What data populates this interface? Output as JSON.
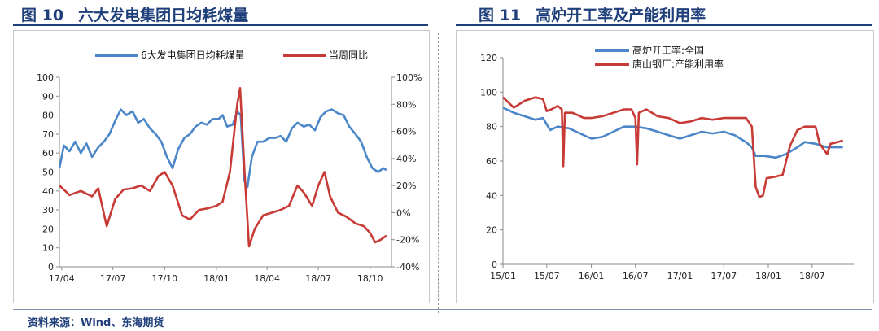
{
  "figures": {
    "fig10": {
      "number": "图 10",
      "title": "六大发电集团日均耗煤量"
    },
    "fig11": {
      "number": "图 11",
      "title": "高炉开工率及产能利用率"
    }
  },
  "source": "资料来源：Wind、东海期货",
  "chart_data": [
    {
      "type": "line",
      "legend_position": "top",
      "grid": false,
      "x_type": "date",
      "x_ticks": [
        "17/04",
        "17/07",
        "17/10",
        "18/01",
        "18/04",
        "18/07",
        "18/10"
      ],
      "y_left": {
        "range": [
          0,
          100
        ],
        "ticks": [
          "0",
          "10",
          "20",
          "30",
          "40",
          "50",
          "60",
          "70",
          "80",
          "90",
          "100"
        ]
      },
      "y_right": {
        "range": [
          -40,
          100
        ],
        "ticks": [
          "-40%",
          "-20%",
          "0%",
          "20%",
          "40%",
          "60%",
          "80%",
          "100%"
        ]
      },
      "series": [
        {
          "name": "6大发电集团日均耗煤量",
          "axis": "left",
          "color": "#4a86c8",
          "points": [
            [
              "2017-03-28",
              52
            ],
            [
              "2017-04-05",
              64
            ],
            [
              "2017-04-15",
              61
            ],
            [
              "2017-04-25",
              66
            ],
            [
              "2017-05-05",
              60
            ],
            [
              "2017-05-15",
              65
            ],
            [
              "2017-05-25",
              58
            ],
            [
              "2017-06-05",
              63
            ],
            [
              "2017-06-15",
              66
            ],
            [
              "2017-06-25",
              70
            ],
            [
              "2017-07-05",
              77
            ],
            [
              "2017-07-15",
              83
            ],
            [
              "2017-07-25",
              80
            ],
            [
              "2017-08-05",
              82
            ],
            [
              "2017-08-15",
              76
            ],
            [
              "2017-08-25",
              78
            ],
            [
              "2017-09-05",
              73
            ],
            [
              "2017-09-15",
              70
            ],
            [
              "2017-09-25",
              66
            ],
            [
              "2017-10-05",
              58
            ],
            [
              "2017-10-15",
              52
            ],
            [
              "2017-10-25",
              62
            ],
            [
              "2017-11-05",
              68
            ],
            [
              "2017-11-15",
              70
            ],
            [
              "2017-11-25",
              74
            ],
            [
              "2017-12-05",
              76
            ],
            [
              "2017-12-15",
              75
            ],
            [
              "2017-12-25",
              78
            ],
            [
              "2018-01-05",
              78
            ],
            [
              "2018-01-12",
              80
            ],
            [
              "2018-01-20",
              74
            ],
            [
              "2018-01-30",
              75
            ],
            [
              "2018-02-07",
              82
            ],
            [
              "2018-02-13",
              80
            ],
            [
              "2018-02-20",
              45
            ],
            [
              "2018-02-25",
              42
            ],
            [
              "2018-03-05",
              58
            ],
            [
              "2018-03-15",
              66
            ],
            [
              "2018-03-25",
              66
            ],
            [
              "2018-04-05",
              68
            ],
            [
              "2018-04-15",
              68
            ],
            [
              "2018-04-25",
              69
            ],
            [
              "2018-05-05",
              66
            ],
            [
              "2018-05-15",
              73
            ],
            [
              "2018-05-25",
              76
            ],
            [
              "2018-06-05",
              74
            ],
            [
              "2018-06-15",
              75
            ],
            [
              "2018-06-25",
              72
            ],
            [
              "2018-07-05",
              79
            ],
            [
              "2018-07-15",
              82
            ],
            [
              "2018-07-25",
              83
            ],
            [
              "2018-08-05",
              81
            ],
            [
              "2018-08-15",
              80
            ],
            [
              "2018-08-25",
              74
            ],
            [
              "2018-09-05",
              70
            ],
            [
              "2018-09-15",
              66
            ],
            [
              "2018-09-25",
              58
            ],
            [
              "2018-10-05",
              52
            ],
            [
              "2018-10-15",
              50
            ],
            [
              "2018-10-25",
              52
            ],
            [
              "2018-10-30",
              51
            ]
          ]
        },
        {
          "name": "当周同比",
          "axis": "right",
          "color": "#c83a35",
          "points": [
            [
              "2017-03-28",
              20
            ],
            [
              "2017-04-15",
              13
            ],
            [
              "2017-05-05",
              16
            ],
            [
              "2017-05-25",
              12
            ],
            [
              "2017-06-05",
              18
            ],
            [
              "2017-06-20",
              -10
            ],
            [
              "2017-07-05",
              10
            ],
            [
              "2017-07-20",
              17
            ],
            [
              "2017-08-05",
              18
            ],
            [
              "2017-08-20",
              20
            ],
            [
              "2017-09-05",
              16
            ],
            [
              "2017-09-20",
              27
            ],
            [
              "2017-10-01",
              30
            ],
            [
              "2017-10-15",
              20
            ],
            [
              "2017-11-01",
              -2
            ],
            [
              "2017-11-15",
              -5
            ],
            [
              "2017-12-01",
              2
            ],
            [
              "2017-12-15",
              3
            ],
            [
              "2018-01-01",
              5
            ],
            [
              "2018-01-12",
              8
            ],
            [
              "2018-01-25",
              30
            ],
            [
              "2018-02-07",
              80
            ],
            [
              "2018-02-12",
              92
            ],
            [
              "2018-02-20",
              30
            ],
            [
              "2018-02-28",
              -25
            ],
            [
              "2018-03-10",
              -12
            ],
            [
              "2018-03-25",
              -2
            ],
            [
              "2018-04-10",
              0
            ],
            [
              "2018-04-25",
              2
            ],
            [
              "2018-05-10",
              5
            ],
            [
              "2018-05-25",
              20
            ],
            [
              "2018-06-05",
              15
            ],
            [
              "2018-06-20",
              5
            ],
            [
              "2018-07-01",
              20
            ],
            [
              "2018-07-12",
              30
            ],
            [
              "2018-07-22",
              12
            ],
            [
              "2018-08-05",
              0
            ],
            [
              "2018-08-20",
              -3
            ],
            [
              "2018-09-05",
              -8
            ],
            [
              "2018-09-20",
              -10
            ],
            [
              "2018-10-01",
              -15
            ],
            [
              "2018-10-10",
              -22
            ],
            [
              "2018-10-20",
              -20
            ],
            [
              "2018-10-30",
              -17
            ]
          ]
        }
      ]
    },
    {
      "type": "line",
      "legend_position": "top-left",
      "grid": false,
      "x_type": "date",
      "x_ticks": [
        "15/01",
        "15/07",
        "16/01",
        "16/07",
        "17/01",
        "17/07",
        "18/01",
        "18/07"
      ],
      "y_left": {
        "range": [
          0,
          120
        ],
        "ticks": [
          "0",
          "20",
          "40",
          "60",
          "80",
          "100",
          "120"
        ]
      },
      "series": [
        {
          "name": "高炉开工率:全国",
          "axis": "left",
          "color": "#4a86c8",
          "points": [
            [
              "2015-01-01",
              91
            ],
            [
              "2015-02-15",
              88
            ],
            [
              "2015-04-01",
              86
            ],
            [
              "2015-05-15",
              84
            ],
            [
              "2015-06-15",
              85
            ],
            [
              "2015-07-15",
              78
            ],
            [
              "2015-08-15",
              80
            ],
            [
              "2015-10-01",
              79
            ],
            [
              "2015-11-15",
              76
            ],
            [
              "2016-01-01",
              73
            ],
            [
              "2016-02-15",
              74
            ],
            [
              "2016-04-01",
              77
            ],
            [
              "2016-05-15",
              80
            ],
            [
              "2016-07-01",
              80
            ],
            [
              "2016-08-15",
              79
            ],
            [
              "2016-10-01",
              77
            ],
            [
              "2016-11-15",
              75
            ],
            [
              "2017-01-01",
              73
            ],
            [
              "2017-02-15",
              75
            ],
            [
              "2017-04-01",
              77
            ],
            [
              "2017-05-15",
              76
            ],
            [
              "2017-07-01",
              77
            ],
            [
              "2017-08-15",
              75
            ],
            [
              "2017-10-01",
              71
            ],
            [
              "2017-10-25",
              68
            ],
            [
              "2017-11-10",
              63
            ],
            [
              "2017-12-15",
              63
            ],
            [
              "2018-02-01",
              62
            ],
            [
              "2018-03-15",
              64
            ],
            [
              "2018-05-01",
              68
            ],
            [
              "2018-06-01",
              71
            ],
            [
              "2018-07-15",
              70
            ],
            [
              "2018-09-01",
              68
            ],
            [
              "2018-10-15",
              68
            ],
            [
              "2018-11-05",
              68
            ]
          ]
        },
        {
          "name": "唐山钢厂:产能利用率",
          "axis": "left",
          "color": "#c83a35",
          "points": [
            [
              "2015-01-01",
              97
            ],
            [
              "2015-02-15",
              91
            ],
            [
              "2015-04-01",
              95
            ],
            [
              "2015-05-15",
              97
            ],
            [
              "2015-06-15",
              96
            ],
            [
              "2015-07-01",
              89
            ],
            [
              "2015-07-20",
              90
            ],
            [
              "2015-08-15",
              92
            ],
            [
              "2015-09-01",
              90
            ],
            [
              "2015-09-07",
              57
            ],
            [
              "2015-09-14",
              88
            ],
            [
              "2015-10-15",
              88
            ],
            [
              "2015-12-01",
              85
            ],
            [
              "2016-01-01",
              85
            ],
            [
              "2016-02-15",
              86
            ],
            [
              "2016-04-01",
              88
            ],
            [
              "2016-05-15",
              90
            ],
            [
              "2016-06-15",
              90
            ],
            [
              "2016-07-01",
              85
            ],
            [
              "2016-07-08",
              58
            ],
            [
              "2016-07-15",
              88
            ],
            [
              "2016-08-15",
              90
            ],
            [
              "2016-10-01",
              86
            ],
            [
              "2016-11-15",
              85
            ],
            [
              "2017-01-01",
              82
            ],
            [
              "2017-02-15",
              83
            ],
            [
              "2017-04-01",
              85
            ],
            [
              "2017-05-15",
              84
            ],
            [
              "2017-07-01",
              85
            ],
            [
              "2017-08-15",
              85
            ],
            [
              "2017-10-01",
              85
            ],
            [
              "2017-10-25",
              80
            ],
            [
              "2017-11-10",
              45
            ],
            [
              "2017-11-25",
              39
            ],
            [
              "2017-12-10",
              40
            ],
            [
              "2017-12-25",
              50
            ],
            [
              "2018-02-01",
              51
            ],
            [
              "2018-03-01",
              52
            ],
            [
              "2018-04-01",
              69
            ],
            [
              "2018-05-01",
              78
            ],
            [
              "2018-06-01",
              80
            ],
            [
              "2018-07-15",
              80
            ],
            [
              "2018-08-01",
              70
            ],
            [
              "2018-09-01",
              64
            ],
            [
              "2018-09-15",
              70
            ],
            [
              "2018-10-15",
              71
            ],
            [
              "2018-11-05",
              72
            ]
          ]
        }
      ]
    }
  ]
}
